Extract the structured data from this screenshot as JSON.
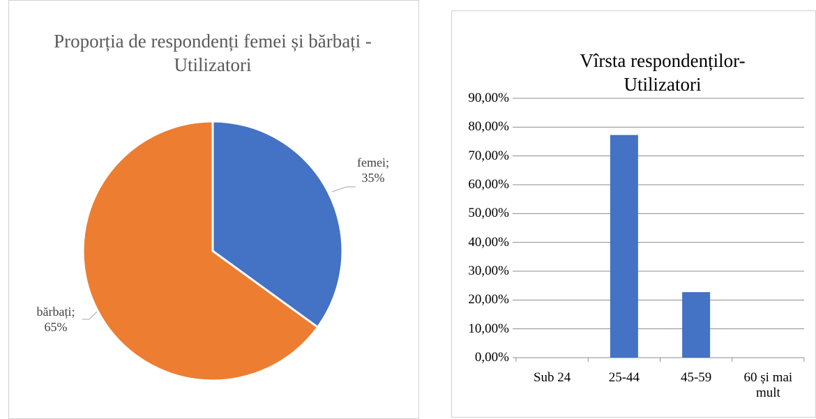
{
  "chart_data": [
    {
      "type": "pie",
      "title": "Proporția de respondenți femei și bărbați - Utilizatori",
      "categories": [
        "femei",
        "bărbați"
      ],
      "values": [
        35,
        65
      ],
      "value_labels": [
        "35%",
        "65%"
      ],
      "label_separator": ";",
      "colors": [
        "#4472c4",
        "#ed7d31"
      ]
    },
    {
      "type": "bar",
      "title": "Vîrsta respondenților-Utilizatori",
      "categories": [
        "Sub 24",
        "25-44",
        "45-59",
        "60 și mai mult"
      ],
      "values": [
        0,
        77.27,
        22.73,
        0
      ],
      "color": "#4472c4",
      "ylim": [
        0,
        90
      ],
      "yticks": [
        {
          "value": 0,
          "label": "0,00%"
        },
        {
          "value": 10,
          "label": "10,00%"
        },
        {
          "value": 20,
          "label": "20,00%"
        },
        {
          "value": 30,
          "label": "30,00%"
        },
        {
          "value": 40,
          "label": "40,00%"
        },
        {
          "value": 50,
          "label": "50,00%"
        },
        {
          "value": 60,
          "label": "60,00%"
        },
        {
          "value": 70,
          "label": "70,00%"
        },
        {
          "value": 80,
          "label": "80,00%"
        },
        {
          "value": 90,
          "label": "90,00%"
        }
      ],
      "grid": true
    }
  ]
}
